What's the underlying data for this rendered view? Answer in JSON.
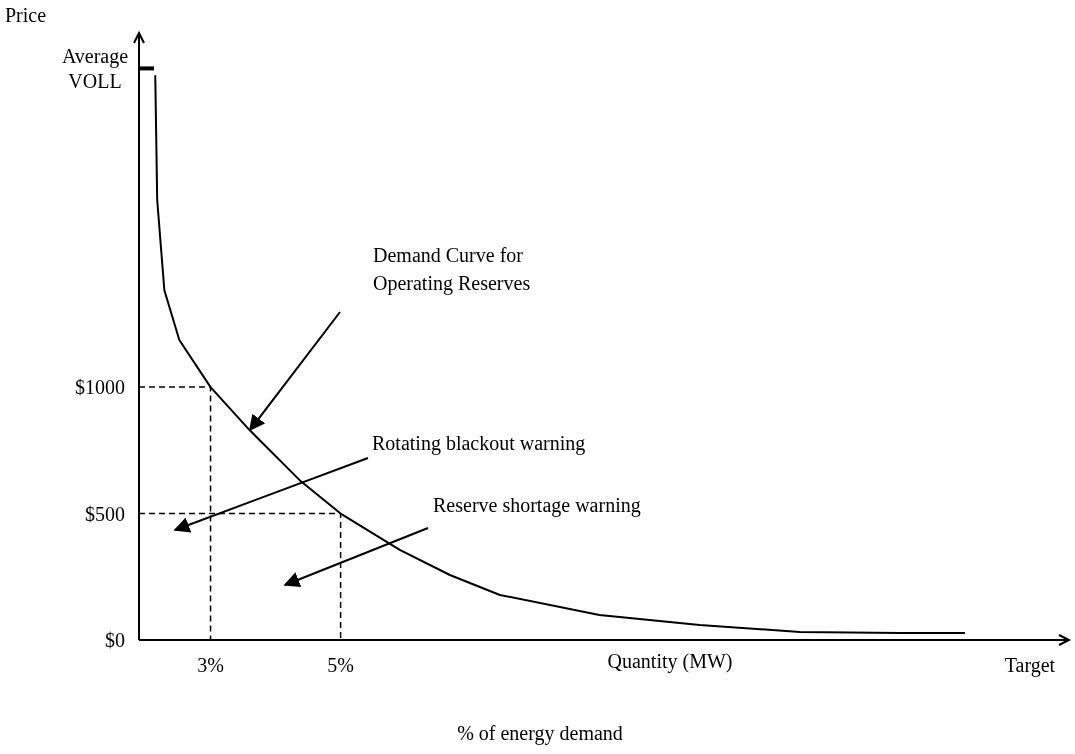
{
  "chart_data": {
    "type": "line",
    "ylabel": "Price",
    "xlabel": "Quantity (MW)",
    "xlim": [
      1.9,
      16.2
    ],
    "ylim": [
      0,
      2400
    ],
    "xticks": [
      {
        "value": 3,
        "label": "3%"
      },
      {
        "value": 5,
        "label": "5%"
      },
      {
        "value": 15.6,
        "label": "Target"
      }
    ],
    "yticks": [
      {
        "value": 0,
        "label": "$0"
      },
      {
        "value": 500,
        "label": "$500"
      },
      {
        "value": 1000,
        "label": "$1000"
      },
      {
        "value": 2260,
        "label": "Average VOLL"
      }
    ],
    "series": [
      {
        "color": "#000000",
        "x": [
          2.15,
          2.18,
          2.29,
          2.52,
          3,
          3.6,
          4.37,
          5,
          5.91,
          6.68,
          7.45,
          8.98,
          10.52,
          12.06,
          13.6,
          14.6
        ],
        "values": [
          2233,
          1739,
          1383,
          1186,
          1000,
          830,
          632,
          500,
          356,
          257,
          178,
          99,
          59,
          32,
          28,
          28
        ]
      },
      {
        "color": "#000000",
        "line_style": "dashed",
        "x": [
          1.9,
          3,
          3
        ],
        "values": [
          1000,
          1000,
          0
        ]
      },
      {
        "color": "#000000",
        "line_style": "dashed",
        "x": [
          1.9,
          5,
          5
        ],
        "values": [
          500,
          500,
          0
        ]
      }
    ],
    "annotations": [
      "Demand Curve for Operating Reserves",
      "Rotating blackout warning",
      "Reserve shortage warning",
      "% of energy demand"
    ]
  }
}
